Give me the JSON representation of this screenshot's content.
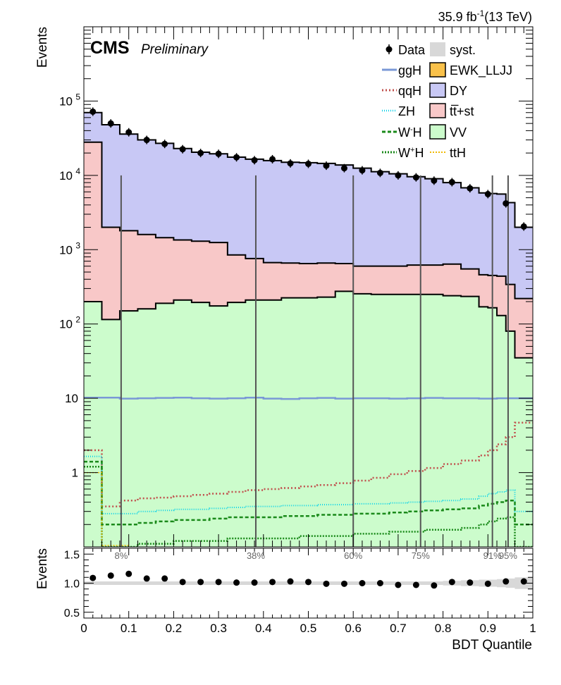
{
  "chart_data": {
    "type": "histogram",
    "lumi_label": "35.9 fb",
    "lumi_exponent": "-1",
    "lumi_energy": "(13 TeV)",
    "experiment": "CMS",
    "status": "Preliminary",
    "xlabel": "BDT Quantile",
    "ylabel": "Events",
    "ratio_ylabel": "Events",
    "xlim": [
      0,
      1
    ],
    "ylim_log": [
      0.1,
      1000000
    ],
    "ratio_ylim": [
      0.4,
      1.6
    ],
    "x_ticks": [
      "0",
      "0.1",
      "0.2",
      "0.3",
      "0.4",
      "0.5",
      "0.6",
      "0.7",
      "0.8",
      "0.9",
      "1"
    ],
    "y_ticks": [
      {
        "value": 1,
        "label": "1"
      },
      {
        "value": 10,
        "label": "10"
      },
      {
        "value": 100,
        "label": "10",
        "exp": "2"
      },
      {
        "value": 1000,
        "label": "10",
        "exp": "3"
      },
      {
        "value": 10000,
        "label": "10",
        "exp": "4"
      },
      {
        "value": 100000,
        "label": "10",
        "exp": "5"
      }
    ],
    "ratio_ticks": [
      "0.5",
      "1.0",
      "1.5"
    ],
    "bin_edges": [
      0,
      0.04,
      0.08,
      0.12,
      0.16,
      0.2,
      0.24,
      0.28,
      0.32,
      0.36,
      0.4,
      0.44,
      0.48,
      0.52,
      0.56,
      0.6,
      0.64,
      0.68,
      0.72,
      0.76,
      0.8,
      0.84,
      0.88,
      0.9,
      0.92,
      0.94,
      0.96,
      1.0
    ],
    "stack": {
      "vv": [
        200,
        115,
        150,
        160,
        190,
        210,
        195,
        175,
        195,
        210,
        210,
        225,
        225,
        230,
        275,
        255,
        250,
        250,
        250,
        250,
        240,
        235,
        170,
        165,
        130,
        80,
        35
      ],
      "tt": [
        28000,
        2000,
        1800,
        1600,
        1450,
        1350,
        1300,
        1250,
        850,
        760,
        670,
        660,
        650,
        660,
        650,
        600,
        600,
        600,
        620,
        620,
        640,
        550,
        460,
        450,
        440,
        340,
        220
      ],
      "dy": [
        70000,
        48000,
        36000,
        30000,
        27000,
        23000,
        20500,
        19500,
        17600,
        16500,
        15800,
        15000,
        14800,
        14500,
        13800,
        12500,
        11200,
        10500,
        9600,
        9000,
        8000,
        6800,
        5800,
        5700,
        5600,
        4300,
        2000
      ]
    },
    "data": [
      {
        "x": 0.02,
        "y": 72000,
        "r": 1.09
      },
      {
        "x": 0.06,
        "y": 50000,
        "r": 1.13
      },
      {
        "x": 0.1,
        "y": 38000,
        "r": 1.16
      },
      {
        "x": 0.14,
        "y": 30000,
        "r": 1.08
      },
      {
        "x": 0.18,
        "y": 26500,
        "r": 1.08
      },
      {
        "x": 0.22,
        "y": 22500,
        "r": 1.02
      },
      {
        "x": 0.26,
        "y": 20000,
        "r": 1.02
      },
      {
        "x": 0.3,
        "y": 19500,
        "r": 1.02
      },
      {
        "x": 0.34,
        "y": 17500,
        "r": 1.01
      },
      {
        "x": 0.38,
        "y": 16000,
        "r": 1.01
      },
      {
        "x": 0.42,
        "y": 16500,
        "r": 1.02
      },
      {
        "x": 0.46,
        "y": 14500,
        "r": 1.03
      },
      {
        "x": 0.5,
        "y": 14300,
        "r": 1.02
      },
      {
        "x": 0.54,
        "y": 13500,
        "r": 0.99
      },
      {
        "x": 0.58,
        "y": 12500,
        "r": 0.99
      },
      {
        "x": 0.62,
        "y": 11700,
        "r": 1.0
      },
      {
        "x": 0.66,
        "y": 10800,
        "r": 1.0
      },
      {
        "x": 0.7,
        "y": 10000,
        "r": 0.97
      },
      {
        "x": 0.74,
        "y": 9400,
        "r": 0.97
      },
      {
        "x": 0.78,
        "y": 8500,
        "r": 0.96
      },
      {
        "x": 0.82,
        "y": 8100,
        "r": 1.02
      },
      {
        "x": 0.86,
        "y": 6700,
        "r": 1.01
      },
      {
        "x": 0.9,
        "y": 5600,
        "r": 0.99
      },
      {
        "x": 0.94,
        "y": 4200,
        "r": 1.03
      },
      {
        "x": 0.98,
        "y": 2050,
        "r": 1.03
      }
    ],
    "signals": [
      {
        "key": "ggH",
        "label": "ggH",
        "color": "#7a98d6",
        "dash": "",
        "width": 2.5,
        "values": [
          10.2,
          10.2,
          9.9,
          10.0,
          10.1,
          10.2,
          10.0,
          9.9,
          10.0,
          10.2,
          9.9,
          9.8,
          10.0,
          10.1,
          9.9,
          10.0,
          10.0,
          9.9,
          10.0,
          10.1,
          10.0,
          10.0,
          9.9,
          9.9,
          10.0,
          10.0,
          10.0
        ]
      },
      {
        "key": "qqH",
        "label": "qqH",
        "color": "#c0504d",
        "dash": "2,3",
        "width": 2.5,
        "values": [
          2.0,
          0.35,
          0.42,
          0.45,
          0.46,
          0.48,
          0.5,
          0.52,
          0.55,
          0.58,
          0.6,
          0.62,
          0.65,
          0.68,
          0.72,
          0.78,
          0.85,
          0.95,
          1.05,
          1.15,
          1.3,
          1.45,
          1.7,
          2.0,
          2.4,
          3.0,
          4.7
        ]
      },
      {
        "key": "ZH",
        "label": "ZH",
        "color": "#00d0e8",
        "dash": "1,2",
        "width": 2,
        "values": [
          1.65,
          0.28,
          0.28,
          0.3,
          0.31,
          0.32,
          0.32,
          0.33,
          0.34,
          0.35,
          0.35,
          0.36,
          0.36,
          0.37,
          0.37,
          0.38,
          0.38,
          0.39,
          0.4,
          0.41,
          0.42,
          0.44,
          0.48,
          0.52,
          0.55,
          0.58,
          0.3
        ]
      },
      {
        "key": "WmH",
        "label": "W",
        "sup": "-",
        "suffix": "H",
        "color": "#1a8a1a",
        "dash": "5,3",
        "width": 2.5,
        "values": [
          1.4,
          0.2,
          0.2,
          0.21,
          0.22,
          0.23,
          0.23,
          0.24,
          0.25,
          0.25,
          0.25,
          0.26,
          0.26,
          0.27,
          0.27,
          0.28,
          0.28,
          0.29,
          0.3,
          0.31,
          0.32,
          0.33,
          0.36,
          0.38,
          0.4,
          0.42,
          0.2
        ]
      },
      {
        "key": "WpH",
        "label": "W",
        "sup": "+",
        "suffix": "H",
        "color": "#1a8a1a",
        "dash": "2,2",
        "width": 2.5,
        "values": [
          1.2,
          0.1,
          0.1,
          0.11,
          0.11,
          0.12,
          0.12,
          0.12,
          0.13,
          0.13,
          0.13,
          0.13,
          0.14,
          0.14,
          0.14,
          0.15,
          0.15,
          0.16,
          0.16,
          0.17,
          0.17,
          0.18,
          0.2,
          0.22,
          0.24,
          0.25,
          0.1
        ]
      }
    ],
    "legend": [
      {
        "key": "data",
        "label": "Data"
      },
      {
        "key": "syst",
        "label": "syst."
      },
      {
        "key": "ggH",
        "label": "ggH"
      },
      {
        "key": "ewk",
        "label": "EWK_LLJJ",
        "color": "#f9c14a"
      },
      {
        "key": "qqH",
        "label": "qqH"
      },
      {
        "key": "dy",
        "label": "DY",
        "color": "#c8c8f5"
      },
      {
        "key": "ZH",
        "label": "ZH"
      },
      {
        "key": "tt",
        "label": "tt̅+st",
        "color": "#f8c8c8"
      },
      {
        "key": "WmH",
        "label": "W"
      },
      {
        "key": "vv",
        "label": "VV",
        "color": "#ccfccc"
      },
      {
        "key": "WpH",
        "label": "W"
      },
      {
        "key": "ttH",
        "label": "ttH",
        "color": "#f0b800"
      }
    ],
    "category_lines": [
      {
        "x": 0.083,
        "label": "8%"
      },
      {
        "x": 0.383,
        "label": "38%"
      },
      {
        "x": 0.6,
        "label": "60%"
      },
      {
        "x": 0.75,
        "label": "75%"
      },
      {
        "x": 0.91,
        "label": "91%"
      },
      {
        "x": 0.945,
        "label": "95%"
      }
    ],
    "category_line_top": 10000
  }
}
